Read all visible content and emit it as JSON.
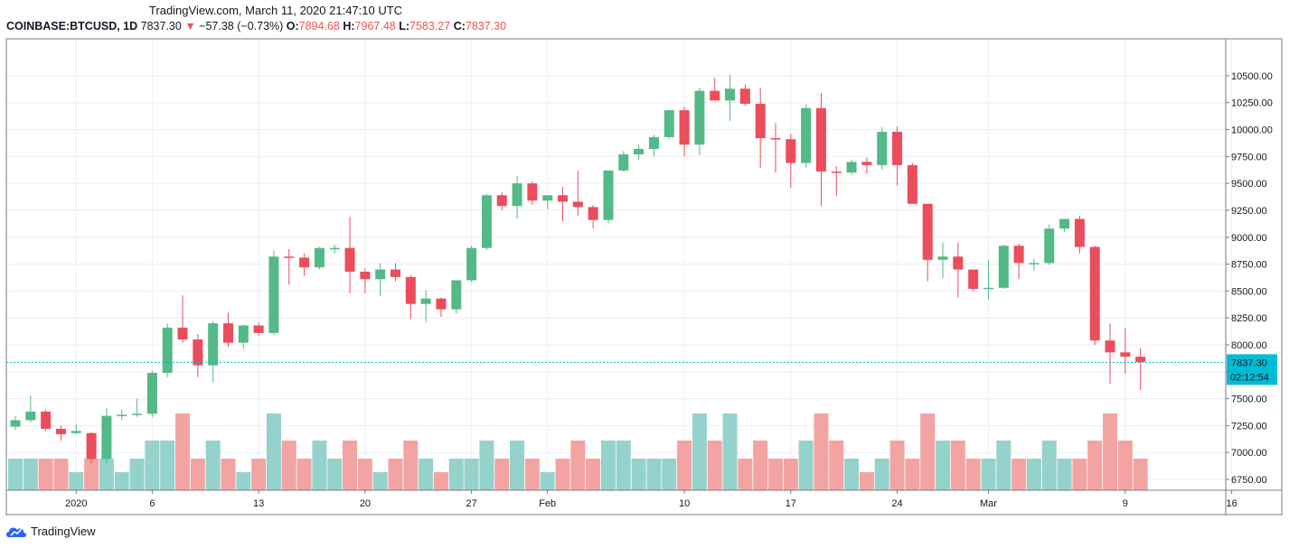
{
  "header": {
    "caption": "TradingView.com, March 11, 2020 21:47:10 UTC",
    "symbol": "COINBASE:BTCUSD, 1D",
    "last": "7837.30",
    "change": "−57.38 (−0.73%)",
    "open_label": "O:",
    "open": "7894.68",
    "high_label": "H:",
    "high": "7967.48",
    "low_label": "L:",
    "low": "7583.27",
    "close_label": "C:",
    "close": "7837.30"
  },
  "brand": {
    "name": "TradingView"
  },
  "colors": {
    "up": "#53b987",
    "down": "#eb4d5c",
    "vol_up": "#94d2cb",
    "vol_down": "#f4a3a3",
    "price_line": "#00bcd4",
    "grid": "#ebeef3",
    "border": "#787b86"
  },
  "chart_data": {
    "type": "candlestick",
    "title": "COINBASE:BTCUSD, 1D",
    "current_price": 7837.3,
    "countdown": "02:12:54",
    "ylim": [
      6600,
      10650
    ],
    "y_ticks": [
      "6750.00",
      "7000.00",
      "7250.00",
      "7500.00",
      "7750.00",
      "8000.00",
      "8250.00",
      "8500.00",
      "8750.00",
      "9000.00",
      "9250.00",
      "9500.00",
      "9750.00",
      "10000.00",
      "10250.00",
      "10500.00"
    ],
    "x_ticks": [
      "2020",
      "6",
      "13",
      "20",
      "27",
      "Feb",
      "10",
      "17",
      "24",
      "Mar",
      "9",
      "16"
    ],
    "x_tick_day_index": [
      4,
      9,
      16,
      23,
      30,
      35,
      44,
      51,
      58,
      64,
      73,
      80
    ],
    "candles_dohlcv": [
      [
        0,
        7240,
        7340,
        7210,
        7300,
        "mid"
      ],
      [
        1,
        7300,
        7530,
        7280,
        7380,
        "mid"
      ],
      [
        2,
        7380,
        7400,
        7200,
        7220,
        "mid"
      ],
      [
        3,
        7220,
        7250,
        7110,
        7170,
        "mid"
      ],
      [
        4,
        7180,
        7260,
        7170,
        7200,
        "low"
      ],
      [
        5,
        7180,
        7190,
        6900,
        6940,
        "mid"
      ],
      [
        6,
        6940,
        7410,
        6900,
        7340,
        "mid"
      ],
      [
        7,
        7340,
        7400,
        7300,
        7350,
        "low"
      ],
      [
        8,
        7350,
        7500,
        7330,
        7360,
        "mid"
      ],
      [
        9,
        7360,
        7760,
        7330,
        7740,
        "high"
      ],
      [
        10,
        7740,
        8200,
        7700,
        8160,
        "high"
      ],
      [
        11,
        8160,
        8460,
        8020,
        8050,
        "veryhigh"
      ],
      [
        12,
        8050,
        8100,
        7700,
        7810,
        "mid"
      ],
      [
        13,
        7810,
        8220,
        7650,
        8200,
        "high"
      ],
      [
        14,
        8200,
        8300,
        7980,
        8020,
        "mid"
      ],
      [
        15,
        8020,
        8190,
        7960,
        8180,
        "low"
      ],
      [
        16,
        8180,
        8210,
        8080,
        8110,
        "mid"
      ],
      [
        17,
        8110,
        8880,
        8090,
        8820,
        "veryhigh"
      ],
      [
        18,
        8820,
        8890,
        8560,
        8810,
        "high"
      ],
      [
        19,
        8810,
        8850,
        8640,
        8720,
        "mid"
      ],
      [
        20,
        8720,
        8910,
        8700,
        8900,
        "high"
      ],
      [
        21,
        8900,
        8930,
        8850,
        8900,
        "mid"
      ],
      [
        22,
        8900,
        9190,
        8480,
        8680,
        "high"
      ],
      [
        23,
        8680,
        8710,
        8480,
        8610,
        "mid"
      ],
      [
        24,
        8610,
        8760,
        8450,
        8700,
        "low"
      ],
      [
        25,
        8700,
        8760,
        8590,
        8630,
        "mid"
      ],
      [
        26,
        8630,
        8650,
        8240,
        8380,
        "high"
      ],
      [
        27,
        8380,
        8510,
        8210,
        8430,
        "mid"
      ],
      [
        28,
        8430,
        8440,
        8260,
        8330,
        "low"
      ],
      [
        29,
        8330,
        8600,
        8290,
        8600,
        "mid"
      ],
      [
        30,
        8600,
        8920,
        8580,
        8900,
        "mid"
      ],
      [
        31,
        8900,
        9400,
        8880,
        9390,
        "high"
      ],
      [
        32,
        9390,
        9420,
        9250,
        9290,
        "mid"
      ],
      [
        33,
        9290,
        9570,
        9170,
        9500,
        "high"
      ],
      [
        34,
        9500,
        9520,
        9300,
        9340,
        "mid"
      ],
      [
        35,
        9340,
        9390,
        9260,
        9390,
        "low"
      ],
      [
        36,
        9390,
        9470,
        9150,
        9330,
        "mid"
      ],
      [
        37,
        9330,
        9620,
        9200,
        9280,
        "high"
      ],
      [
        38,
        9280,
        9300,
        9080,
        9160,
        "mid"
      ],
      [
        39,
        9160,
        9620,
        9130,
        9620,
        "high"
      ],
      [
        40,
        9620,
        9800,
        9610,
        9770,
        "high"
      ],
      [
        41,
        9770,
        9860,
        9720,
        9820,
        "mid"
      ],
      [
        42,
        9820,
        9950,
        9750,
        9930,
        "mid"
      ],
      [
        43,
        9930,
        10170,
        9910,
        10180,
        "mid"
      ],
      [
        44,
        10180,
        10210,
        9750,
        9860,
        "high"
      ],
      [
        45,
        9860,
        10390,
        9760,
        10360,
        "veryhigh"
      ],
      [
        46,
        10360,
        10480,
        10270,
        10270,
        "high"
      ],
      [
        47,
        10270,
        10510,
        10080,
        10380,
        "veryhigh"
      ],
      [
        48,
        10380,
        10420,
        10220,
        10240,
        "mid"
      ],
      [
        49,
        10240,
        10390,
        9640,
        9920,
        "high"
      ],
      [
        50,
        9920,
        10060,
        9600,
        9910,
        "mid"
      ],
      [
        51,
        9910,
        9960,
        9460,
        9690,
        "mid"
      ],
      [
        52,
        9690,
        10230,
        9650,
        10200,
        "high"
      ],
      [
        53,
        10200,
        10340,
        9290,
        9610,
        "veryhigh"
      ],
      [
        54,
        9610,
        9660,
        9380,
        9600,
        "high"
      ],
      [
        55,
        9600,
        9720,
        9580,
        9700,
        "mid"
      ],
      [
        56,
        9700,
        9740,
        9590,
        9670,
        "low"
      ],
      [
        57,
        9670,
        10020,
        9630,
        9980,
        "mid"
      ],
      [
        58,
        9980,
        10030,
        9480,
        9670,
        "high"
      ],
      [
        59,
        9670,
        9690,
        9320,
        9310,
        "mid"
      ],
      [
        60,
        9310,
        9310,
        8590,
        8790,
        "veryhigh"
      ],
      [
        61,
        8790,
        8950,
        8620,
        8820,
        "high"
      ],
      [
        62,
        8820,
        8950,
        8440,
        8700,
        "high"
      ],
      [
        63,
        8700,
        8700,
        8500,
        8520,
        "mid"
      ],
      [
        64,
        8520,
        8790,
        8420,
        8530,
        "mid"
      ],
      [
        65,
        8530,
        8930,
        8520,
        8920,
        "high"
      ],
      [
        66,
        8920,
        8940,
        8610,
        8760,
        "mid"
      ],
      [
        67,
        8760,
        8800,
        8690,
        8760,
        "mid"
      ],
      [
        68,
        8760,
        9120,
        8740,
        9080,
        "high"
      ],
      [
        69,
        9080,
        9170,
        9050,
        9170,
        "mid"
      ],
      [
        70,
        9170,
        9200,
        8850,
        8910,
        "mid"
      ],
      [
        71,
        8910,
        8920,
        8000,
        8040,
        "high"
      ],
      [
        72,
        8040,
        8200,
        7640,
        7930,
        "veryhigh"
      ],
      [
        73,
        7930,
        8160,
        7730,
        7890,
        "high"
      ],
      [
        74,
        7890,
        7970,
        7580,
        7840,
        "mid"
      ]
    ]
  }
}
